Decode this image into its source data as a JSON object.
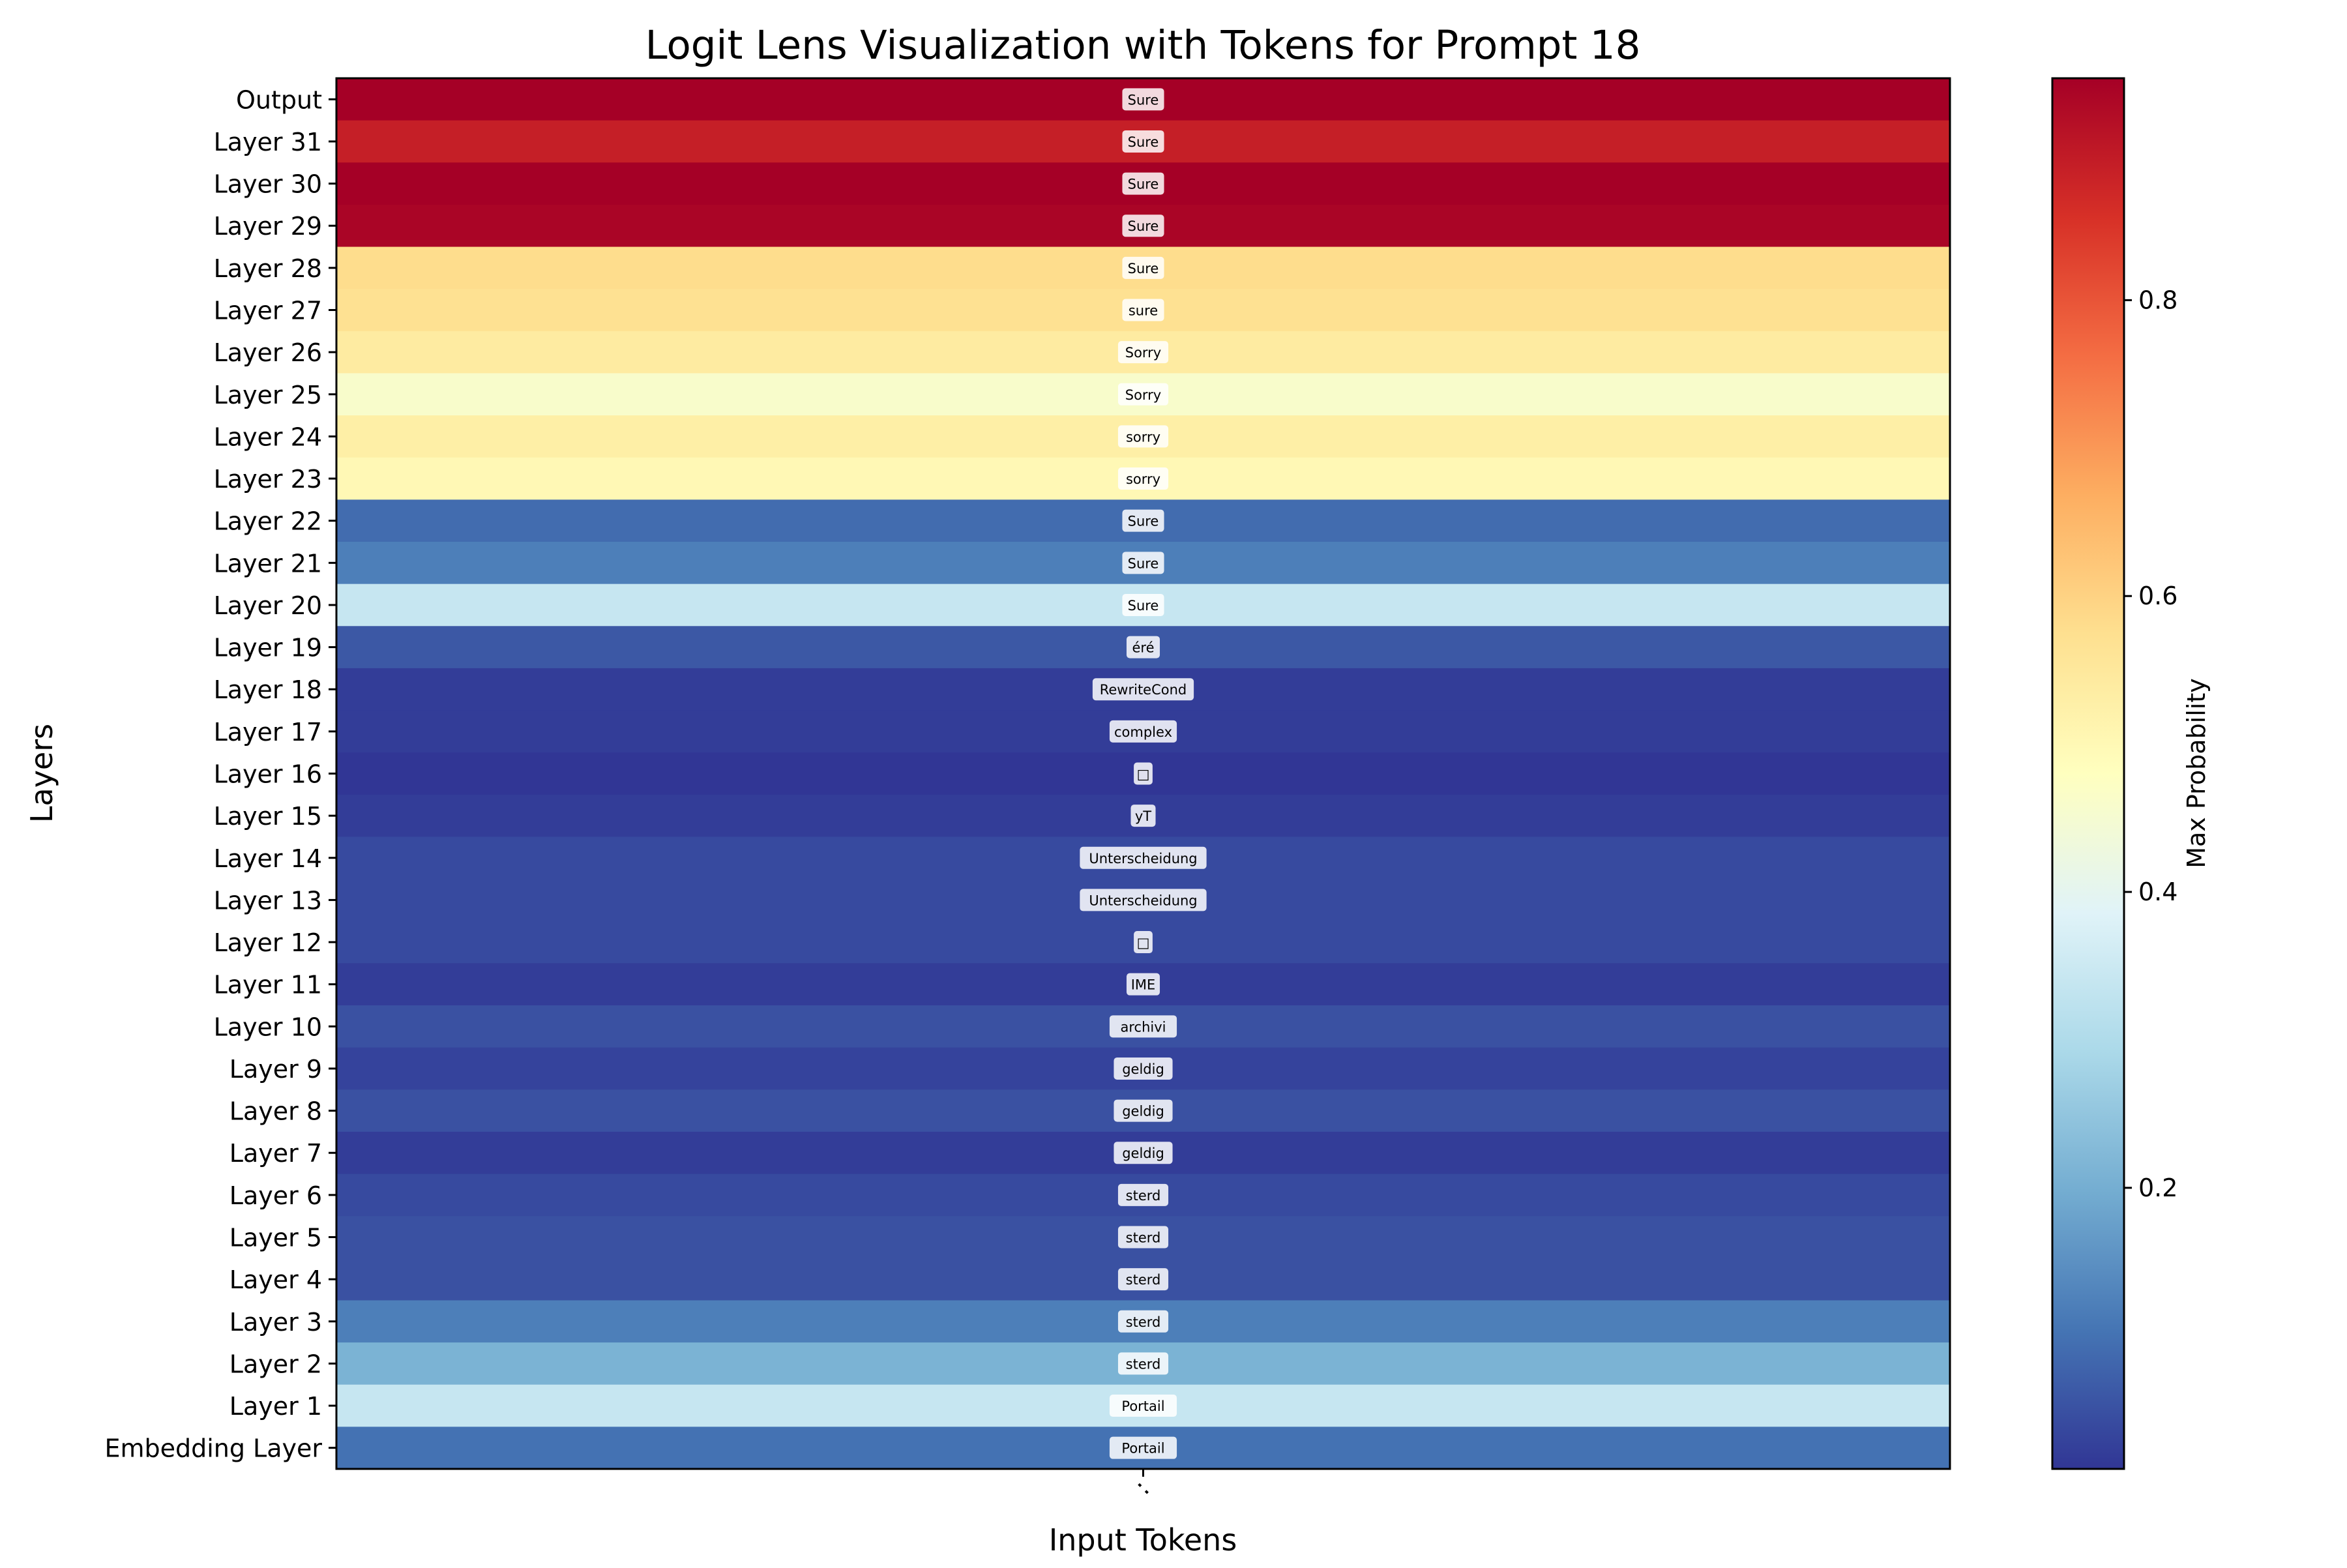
{
  "chart_data": {
    "type": "heatmap",
    "title": "Logit Lens Visualization with Tokens for Prompt 18",
    "xlabel": "Input Tokens",
    "ylabel": "Layers",
    "x_categories": [
      ":"
    ],
    "colorbar": {
      "label": "Max Probability",
      "colormap": "RdYlBu_r",
      "range": [
        0.01,
        0.95
      ],
      "ticks": [
        0.2,
        0.4,
        0.6,
        0.8
      ],
      "tick_labels": [
        "0.2",
        "0.4",
        "0.6",
        "0.8"
      ]
    },
    "rows": [
      {
        "layer": "Output",
        "token": "Sure",
        "value": 0.95
      },
      {
        "layer": "Layer 31",
        "token": "Sure",
        "value": 0.89
      },
      {
        "layer": "Layer 30",
        "token": "Sure",
        "value": 0.95
      },
      {
        "layer": "Layer 29",
        "token": "Sure",
        "value": 0.94
      },
      {
        "layer": "Layer 28",
        "token": "Sure",
        "value": 0.58
      },
      {
        "layer": "Layer 27",
        "token": "sure",
        "value": 0.57
      },
      {
        "layer": "Layer 26",
        "token": "Sorry",
        "value": 0.54
      },
      {
        "layer": "Layer 25",
        "token": "Sorry",
        "value": 0.46
      },
      {
        "layer": "Layer 24",
        "token": "sorry",
        "value": 0.53
      },
      {
        "layer": "Layer 23",
        "token": "sorry",
        "value": 0.5
      },
      {
        "layer": "Layer 22",
        "token": "Sure",
        "value": 0.09
      },
      {
        "layer": "Layer 21",
        "token": "Sure",
        "value": 0.12
      },
      {
        "layer": "Layer 20",
        "token": "Sure",
        "value": 0.34
      },
      {
        "layer": "Layer 19",
        "token": "éré",
        "value": 0.06
      },
      {
        "layer": "Layer 18",
        "token": "RewriteCond",
        "value": 0.02
      },
      {
        "layer": "Layer 17",
        "token": "complex",
        "value": 0.02
      },
      {
        "layer": "Layer 16",
        "token": "□",
        "value": 0.01
      },
      {
        "layer": "Layer 15",
        "token": "yT",
        "value": 0.02
      },
      {
        "layer": "Layer 14",
        "token": "Unterscheidung",
        "value": 0.04
      },
      {
        "layer": "Layer 13",
        "token": "Unterscheidung",
        "value": 0.04
      },
      {
        "layer": "Layer 12",
        "token": "□",
        "value": 0.04
      },
      {
        "layer": "Layer 11",
        "token": "IME",
        "value": 0.02
      },
      {
        "layer": "Layer 10",
        "token": "archivi",
        "value": 0.05
      },
      {
        "layer": "Layer 9",
        "token": "geldig",
        "value": 0.03
      },
      {
        "layer": "Layer 8",
        "token": "geldig",
        "value": 0.05
      },
      {
        "layer": "Layer 7",
        "token": "geldig",
        "value": 0.02
      },
      {
        "layer": "Layer 6",
        "token": "sterd",
        "value": 0.04
      },
      {
        "layer": "Layer 5",
        "token": "sterd",
        "value": 0.05
      },
      {
        "layer": "Layer 4",
        "token": "sterd",
        "value": 0.05
      },
      {
        "layer": "Layer 3",
        "token": "sterd",
        "value": 0.12
      },
      {
        "layer": "Layer 2",
        "token": "sterd",
        "value": 0.21
      },
      {
        "layer": "Layer 1",
        "token": "Portail",
        "value": 0.34
      },
      {
        "layer": "Embedding Layer",
        "token": "Portail",
        "value": 0.1
      }
    ]
  }
}
